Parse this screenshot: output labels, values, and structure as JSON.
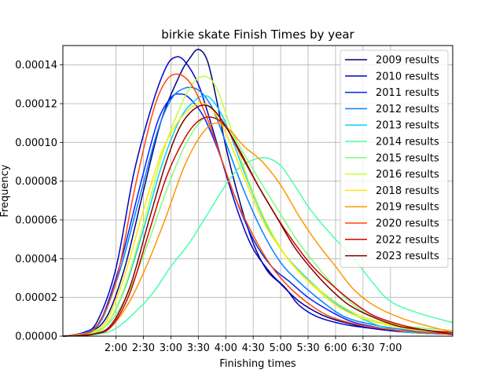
{
  "chart_data": {
    "type": "line",
    "title": "birkie skate Finish Times by year",
    "xlabel": "Finishing times",
    "ylabel": "Frequency",
    "grid": true,
    "legend_position": "top-right",
    "x_unit": "minutes of finishing time",
    "xlim": [
      62,
      488
    ],
    "ylim": [
      0,
      0.00015
    ],
    "x_ticks": [
      {
        "value": 120,
        "label": "2:00"
      },
      {
        "value": 150,
        "label": "2:30"
      },
      {
        "value": 180,
        "label": "3:00"
      },
      {
        "value": 210,
        "label": "3:30"
      },
      {
        "value": 240,
        "label": "4:00"
      },
      {
        "value": 270,
        "label": "4:30"
      },
      {
        "value": 300,
        "label": "5:00"
      },
      {
        "value": 330,
        "label": "5:30"
      },
      {
        "value": 360,
        "label": "6:00"
      },
      {
        "value": 390,
        "label": "6:30"
      },
      {
        "value": 420,
        "label": "7:00"
      }
    ],
    "y_ticks": [
      {
        "value": 0,
        "label": "0.00000"
      },
      {
        "value": 2e-05,
        "label": "0.00002"
      },
      {
        "value": 4e-05,
        "label": "0.00004"
      },
      {
        "value": 6e-05,
        "label": "0.00006"
      },
      {
        "value": 8e-05,
        "label": "0.00008"
      },
      {
        "value": 0.0001,
        "label": "0.00010"
      },
      {
        "value": 0.00012,
        "label": "0.00012"
      },
      {
        "value": 0.00014,
        "label": "0.00014"
      }
    ],
    "series": [
      {
        "name": "2009 results",
        "color": "#00007f",
        "points": [
          [
            62,
            0
          ],
          [
            90,
            2e-06
          ],
          [
            110,
            1e-05
          ],
          [
            130,
            3.6e-05
          ],
          [
            150,
            7.5e-05
          ],
          [
            170,
            0.000112
          ],
          [
            190,
            0.000135
          ],
          [
            200,
            0.000143
          ],
          [
            210,
            0.000148
          ],
          [
            220,
            0.000142
          ],
          [
            230,
            0.000122
          ],
          [
            240,
            9.8e-05
          ],
          [
            255,
            7e-05
          ],
          [
            270,
            4.8e-05
          ],
          [
            285,
            3.4e-05
          ],
          [
            300,
            2.7e-05
          ],
          [
            320,
            1.8e-05
          ],
          [
            345,
            1.1e-05
          ],
          [
            370,
            7e-06
          ],
          [
            400,
            4e-06
          ],
          [
            440,
            2e-06
          ],
          [
            488,
            1e-06
          ]
        ]
      },
      {
        "name": "2010 results",
        "color": "#0000c8",
        "points": [
          [
            62,
            0
          ],
          [
            85,
            2e-06
          ],
          [
            100,
            8e-06
          ],
          [
            120,
            3.5e-05
          ],
          [
            140,
            8.5e-05
          ],
          [
            160,
            0.00012
          ],
          [
            175,
            0.000139
          ],
          [
            185,
            0.000144
          ],
          [
            195,
            0.000142
          ],
          [
            210,
            0.00013
          ],
          [
            225,
            0.000108
          ],
          [
            240,
            8.4e-05
          ],
          [
            255,
            6.2e-05
          ],
          [
            270,
            4.5e-05
          ],
          [
            290,
            3.2e-05
          ],
          [
            305,
            2.5e-05
          ],
          [
            320,
            1.6e-05
          ],
          [
            340,
            1e-05
          ],
          [
            370,
            6e-06
          ],
          [
            400,
            4e-06
          ],
          [
            440,
            2e-06
          ],
          [
            488,
            1e-06
          ]
        ]
      },
      {
        "name": "2011 results",
        "color": "#0020ff",
        "points": [
          [
            62,
            0
          ],
          [
            88,
            2e-06
          ],
          [
            105,
            1e-05
          ],
          [
            125,
            3.8e-05
          ],
          [
            145,
            7.5e-05
          ],
          [
            165,
            0.00011
          ],
          [
            180,
            0.000123
          ],
          [
            190,
            0.000125
          ],
          [
            200,
            0.000123
          ],
          [
            215,
            0.000114
          ],
          [
            230,
            9.8e-05
          ],
          [
            250,
            7.2e-05
          ],
          [
            270,
            5e-05
          ],
          [
            290,
            3.6e-05
          ],
          [
            310,
            2.8e-05
          ],
          [
            330,
            2e-05
          ],
          [
            350,
            1.4e-05
          ],
          [
            375,
            8e-06
          ],
          [
            400,
            5e-06
          ],
          [
            440,
            2e-06
          ],
          [
            488,
            1e-06
          ]
        ]
      },
      {
        "name": "2012 results",
        "color": "#0080ff",
        "points": [
          [
            62,
            0
          ],
          [
            88,
            2e-06
          ],
          [
            105,
            9e-06
          ],
          [
            125,
            3.5e-05
          ],
          [
            145,
            7e-05
          ],
          [
            165,
            0.000105
          ],
          [
            180,
            0.000122
          ],
          [
            195,
            0.000128
          ],
          [
            210,
            0.000127
          ],
          [
            225,
            0.000118
          ],
          [
            240,
            0.0001
          ],
          [
            260,
            7.5e-05
          ],
          [
            280,
            5.4e-05
          ],
          [
            300,
            3.8e-05
          ],
          [
            320,
            2.8e-05
          ],
          [
            345,
            1.8e-05
          ],
          [
            370,
            1e-05
          ],
          [
            400,
            6e-06
          ],
          [
            440,
            3e-06
          ],
          [
            488,
            1e-06
          ]
        ]
      },
      {
        "name": "2013 results",
        "color": "#00d4ff",
        "points": [
          [
            62,
            0
          ],
          [
            90,
            1e-06
          ],
          [
            110,
            6e-06
          ],
          [
            130,
            2.5e-05
          ],
          [
            150,
            5.5e-05
          ],
          [
            170,
            8.8e-05
          ],
          [
            190,
            0.000112
          ],
          [
            205,
            0.000121
          ],
          [
            215,
            0.000124
          ],
          [
            225,
            0.000122
          ],
          [
            240,
            0.00011
          ],
          [
            260,
            8.5e-05
          ],
          [
            280,
            6.2e-05
          ],
          [
            300,
            4.5e-05
          ],
          [
            320,
            3.4e-05
          ],
          [
            340,
            2.5e-05
          ],
          [
            360,
            1.7e-05
          ],
          [
            385,
            1e-05
          ],
          [
            410,
            5e-06
          ],
          [
            440,
            2e-06
          ],
          [
            488,
            1e-06
          ]
        ]
      },
      {
        "name": "2014 results",
        "color": "#4cffaa",
        "points": [
          [
            62,
            0
          ],
          [
            100,
            1e-06
          ],
          [
            120,
            4e-06
          ],
          [
            140,
            1.2e-05
          ],
          [
            160,
            2.2e-05
          ],
          [
            180,
            3.6e-05
          ],
          [
            200,
            4.8e-05
          ],
          [
            220,
            6.3e-05
          ],
          [
            240,
            7.8e-05
          ],
          [
            255,
            8.7e-05
          ],
          [
            270,
            9.1e-05
          ],
          [
            285,
            9.2e-05
          ],
          [
            300,
            8.8e-05
          ],
          [
            315,
            7.8e-05
          ],
          [
            330,
            6.7e-05
          ],
          [
            345,
            5.8e-05
          ],
          [
            360,
            5e-05
          ],
          [
            380,
            4e-05
          ],
          [
            400,
            2.8e-05
          ],
          [
            420,
            1.8e-05
          ],
          [
            450,
            1.2e-05
          ],
          [
            488,
            7e-06
          ]
        ]
      },
      {
        "name": "2015 results",
        "color": "#7dff7a",
        "points": [
          [
            62,
            0
          ],
          [
            95,
            2e-06
          ],
          [
            115,
            8e-06
          ],
          [
            135,
            2.4e-05
          ],
          [
            155,
            4.8e-05
          ],
          [
            175,
            7.5e-05
          ],
          [
            195,
            9.8e-05
          ],
          [
            215,
            0.000112
          ],
          [
            230,
            0.000112
          ],
          [
            245,
            0.000106
          ],
          [
            260,
            9.4e-05
          ],
          [
            280,
            7.8e-05
          ],
          [
            300,
            6.3e-05
          ],
          [
            320,
            4.8e-05
          ],
          [
            340,
            3.6e-05
          ],
          [
            360,
            2.5e-05
          ],
          [
            380,
            1.6e-05
          ],
          [
            405,
            9e-06
          ],
          [
            440,
            5e-06
          ],
          [
            488,
            3e-06
          ]
        ]
      },
      {
        "name": "2016 results",
        "color": "#c1ff36",
        "points": [
          [
            62,
            0
          ],
          [
            92,
            1e-06
          ],
          [
            110,
            6e-06
          ],
          [
            130,
            2.6e-05
          ],
          [
            150,
            5.8e-05
          ],
          [
            170,
            9.3e-05
          ],
          [
            190,
            0.000118
          ],
          [
            205,
            0.000131
          ],
          [
            218,
            0.000134
          ],
          [
            230,
            0.000128
          ],
          [
            245,
            0.000108
          ],
          [
            265,
            8e-05
          ],
          [
            285,
            5.8e-05
          ],
          [
            305,
            4.2e-05
          ],
          [
            325,
            3.1e-05
          ],
          [
            345,
            2.3e-05
          ],
          [
            365,
            1.6e-05
          ],
          [
            390,
            1e-05
          ],
          [
            420,
            6e-06
          ],
          [
            460,
            3e-06
          ],
          [
            488,
            2e-06
          ]
        ]
      },
      {
        "name": "2018 results",
        "color": "#ffe500",
        "points": [
          [
            62,
            0
          ],
          [
            92,
            2e-06
          ],
          [
            110,
            8e-06
          ],
          [
            130,
            3.2e-05
          ],
          [
            150,
            6.5e-05
          ],
          [
            170,
            9.5e-05
          ],
          [
            190,
            0.000112
          ],
          [
            210,
            0.00012
          ],
          [
            225,
            0.000117
          ],
          [
            240,
            0.000105
          ],
          [
            260,
            8.2e-05
          ],
          [
            280,
            6e-05
          ],
          [
            300,
            4.5e-05
          ],
          [
            320,
            3.3e-05
          ],
          [
            340,
            2.4e-05
          ],
          [
            360,
            1.6e-05
          ],
          [
            385,
            1e-05
          ],
          [
            415,
            6e-06
          ],
          [
            450,
            3e-06
          ],
          [
            488,
            2e-06
          ]
        ]
      },
      {
        "name": "2019 results",
        "color": "#ff9600",
        "points": [
          [
            62,
            0
          ],
          [
            95,
            1e-06
          ],
          [
            115,
            5e-06
          ],
          [
            135,
            1.8e-05
          ],
          [
            155,
            3.8e-05
          ],
          [
            175,
            6.2e-05
          ],
          [
            195,
            8.8e-05
          ],
          [
            215,
            0.000105
          ],
          [
            230,
            0.00011
          ],
          [
            245,
            0.000106
          ],
          [
            260,
            9.8e-05
          ],
          [
            280,
            9e-05
          ],
          [
            300,
            7.8e-05
          ],
          [
            320,
            6.2e-05
          ],
          [
            340,
            4.8e-05
          ],
          [
            360,
            3.6e-05
          ],
          [
            380,
            2.4e-05
          ],
          [
            405,
            1.5e-05
          ],
          [
            440,
            8e-06
          ],
          [
            488,
            2e-06
          ]
        ]
      },
      {
        "name": "2020 results",
        "color": "#ff4800",
        "points": [
          [
            62,
            0
          ],
          [
            85,
            1e-06
          ],
          [
            100,
            6e-06
          ],
          [
            120,
            2.8e-05
          ],
          [
            140,
            7.5e-05
          ],
          [
            160,
            0.000115
          ],
          [
            175,
            0.000132
          ],
          [
            190,
            0.000135
          ],
          [
            205,
            0.000128
          ],
          [
            220,
            0.000112
          ],
          [
            235,
            9.2e-05
          ],
          [
            250,
            7.2e-05
          ],
          [
            270,
            5.2e-05
          ],
          [
            290,
            3.6e-05
          ],
          [
            310,
            2.5e-05
          ],
          [
            330,
            1.7e-05
          ],
          [
            350,
            1.1e-05
          ],
          [
            375,
            7e-06
          ],
          [
            410,
            4e-06
          ],
          [
            450,
            2e-06
          ],
          [
            488,
            1e-06
          ]
        ]
      },
      {
        "name": "2022 results",
        "color": "#d50000",
        "points": [
          [
            62,
            0
          ],
          [
            95,
            1e-06
          ],
          [
            115,
            5e-06
          ],
          [
            135,
            2.2e-05
          ],
          [
            155,
            5.2e-05
          ],
          [
            175,
            8.2e-05
          ],
          [
            195,
            0.000102
          ],
          [
            210,
            0.000111
          ],
          [
            225,
            0.000113
          ],
          [
            240,
            0.000108
          ],
          [
            255,
            9.5e-05
          ],
          [
            275,
            7.8e-05
          ],
          [
            295,
            6.2e-05
          ],
          [
            315,
            4.8e-05
          ],
          [
            335,
            3.6e-05
          ],
          [
            355,
            2.7e-05
          ],
          [
            375,
            1.9e-05
          ],
          [
            400,
            1.1e-05
          ],
          [
            430,
            6e-06
          ],
          [
            460,
            3e-06
          ],
          [
            488,
            2e-06
          ]
        ]
      },
      {
        "name": "2023 results",
        "color": "#7f0000",
        "points": [
          [
            62,
            0
          ],
          [
            95,
            1e-06
          ],
          [
            115,
            6e-06
          ],
          [
            135,
            2.5e-05
          ],
          [
            155,
            5.8e-05
          ],
          [
            175,
            9e-05
          ],
          [
            190,
            0.000108
          ],
          [
            205,
            0.000117
          ],
          [
            220,
            0.000119
          ],
          [
            235,
            0.000112
          ],
          [
            255,
            9.6e-05
          ],
          [
            275,
            7.8e-05
          ],
          [
            295,
            6.2e-05
          ],
          [
            315,
            4.6e-05
          ],
          [
            335,
            3.4e-05
          ],
          [
            355,
            2.4e-05
          ],
          [
            375,
            1.6e-05
          ],
          [
            400,
            1e-05
          ],
          [
            430,
            5e-06
          ],
          [
            460,
            3e-06
          ],
          [
            488,
            1e-06
          ]
        ]
      }
    ]
  }
}
